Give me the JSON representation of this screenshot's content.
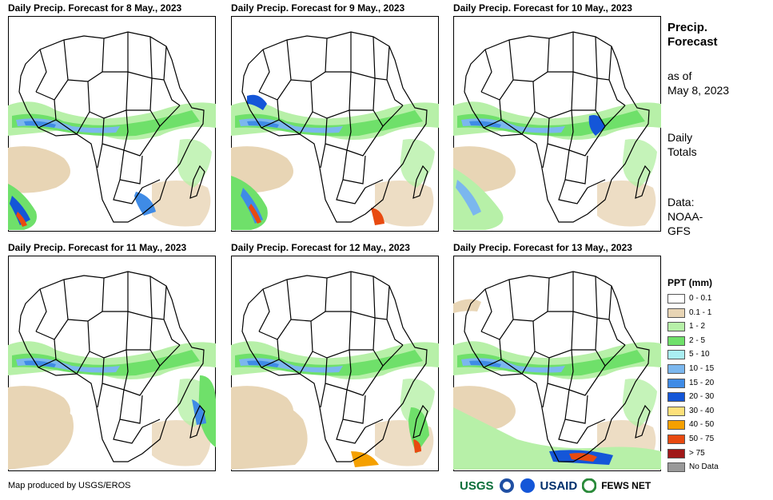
{
  "panels": [
    {
      "title": "Daily Precip. Forecast for 8 May., 2023"
    },
    {
      "title": "Daily Precip. Forecast for 9 May., 2023"
    },
    {
      "title": "Daily Precip. Forecast for 10 May., 2023"
    },
    {
      "title": "Daily Precip. Forecast for 11 May., 2023"
    },
    {
      "title": "Daily Precip. Forecast for 12 May., 2023"
    },
    {
      "title": "Daily Precip. Forecast for 13 May., 2023"
    }
  ],
  "side": {
    "heading1": "Precip.",
    "heading2": "Forecast",
    "asof1": "as of",
    "asof2": "May 8, 2023",
    "totals1": "Daily",
    "totals2": "Totals",
    "data1": "Data:",
    "data2": "NOAA-",
    "data3": "GFS"
  },
  "legend": {
    "title": "PPT (mm)",
    "items": [
      {
        "label": "0 - 0.1",
        "color": "#ffffff"
      },
      {
        "label": "0.1 - 1",
        "color": "#e8d5b5"
      },
      {
        "label": "1 - 2",
        "color": "#b7f0a8"
      },
      {
        "label": "2 - 5",
        "color": "#6fe06a"
      },
      {
        "label": "5 - 10",
        "color": "#aaeef2"
      },
      {
        "label": "10 - 15",
        "color": "#7bb7ee"
      },
      {
        "label": "15 - 20",
        "color": "#3f8be6"
      },
      {
        "label": "20 - 30",
        "color": "#1456d8"
      },
      {
        "label": "30 - 40",
        "color": "#fde07a"
      },
      {
        "label": "40 - 50",
        "color": "#f5a000"
      },
      {
        "label": "50 - 75",
        "color": "#e84a10"
      },
      {
        "label": "> 75",
        "color": "#a01818"
      },
      {
        "label": "No Data",
        "color": "#999999"
      }
    ]
  },
  "footer": "Map produced by USGS/EROS",
  "logos": {
    "usgs": "USGS",
    "usaid": "USAID",
    "fewsnet": "FEWS NET"
  }
}
